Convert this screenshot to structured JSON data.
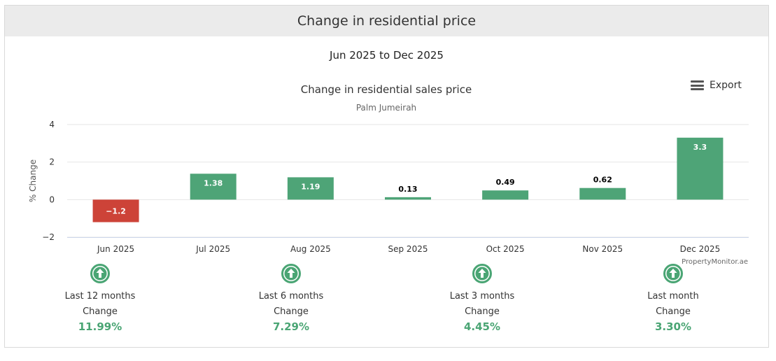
{
  "card": {
    "title": "Change in residential price",
    "date_range": "Jun 2025 to Dec 2025"
  },
  "export_label": "Export",
  "colors": {
    "positive": "#4ea477",
    "negative": "#cd4338",
    "stat_value": "#4aa574"
  },
  "chart_data": {
    "type": "bar",
    "title": "Change in residential sales price",
    "subtitle": "Palm Jumeirah",
    "xlabel": "",
    "ylabel": "% Change",
    "categories": [
      "Jun 2025",
      "Jul 2025",
      "Aug 2025",
      "Sep 2025",
      "Oct 2025",
      "Nov 2025",
      "Dec 2025"
    ],
    "values": [
      -1.2,
      1.38,
      1.19,
      0.13,
      0.49,
      0.62,
      3.3
    ],
    "data_labels": [
      "−1.2",
      "1.38",
      "1.19",
      "0.13",
      "0.49",
      "0.62",
      "3.3"
    ],
    "ylim": [
      -2,
      4
    ],
    "yticks": [
      4,
      2,
      0,
      -2
    ],
    "ytick_labels": [
      "4",
      "2",
      "0",
      "−2"
    ],
    "grid": true,
    "legend": "none",
    "credit": "PropertyMonitor.ae"
  },
  "stats": [
    {
      "period": "Last 12 months",
      "label": "Change",
      "value": "11.99%",
      "icon": "arrow-up-circle-icon"
    },
    {
      "period": "Last 6 months",
      "label": "Change",
      "value": "7.29%",
      "icon": "arrow-up-circle-icon"
    },
    {
      "period": "Last 3 months",
      "label": "Change",
      "value": "4.45%",
      "icon": "arrow-up-circle-icon"
    },
    {
      "period": "Last month",
      "label": "Change",
      "value": "3.30%",
      "icon": "arrow-up-circle-icon"
    }
  ]
}
